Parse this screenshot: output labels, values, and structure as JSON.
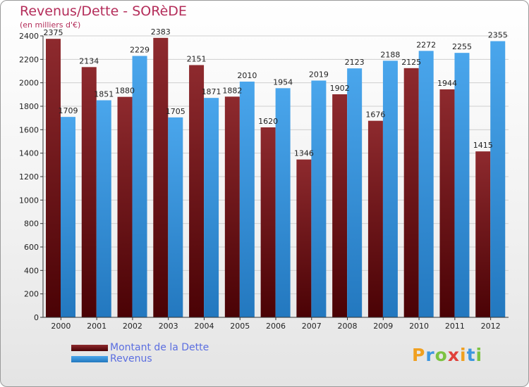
{
  "chart_data": {
    "type": "bar",
    "title": "Revenus/Dette - SORèDE",
    "unit_label": "(en milliers d'€)",
    "categories": [
      "2000",
      "2001",
      "2002",
      "2003",
      "2004",
      "2005",
      "2006",
      "2007",
      "2008",
      "2009",
      "2010",
      "2011",
      "2012"
    ],
    "series": [
      {
        "name": "Montant de la Dette",
        "color": "#7a1b1f",
        "values": [
          2375,
          2134,
          1880,
          2383,
          2151,
          1882,
          1620,
          1346,
          1902,
          1676,
          2125,
          1944,
          1415
        ]
      },
      {
        "name": "Revenus",
        "color": "#3d97e0",
        "values": [
          1709,
          1851,
          2229,
          1705,
          1871,
          2010,
          1954,
          2019,
          2123,
          2188,
          2272,
          2255,
          2355
        ]
      }
    ],
    "ylim": [
      0,
      2400
    ],
    "yticks": [
      0,
      200,
      400,
      600,
      800,
      1000,
      1200,
      1400,
      1600,
      1800,
      2000,
      2200,
      2400
    ],
    "grid": true,
    "legend_position": "bottom-left"
  },
  "logo": {
    "text": "Proxiti",
    "letters": [
      "P",
      "r",
      "o",
      "x",
      "i",
      "t",
      "i"
    ],
    "colors": [
      "#f0a020",
      "#3d97e0",
      "#7cc242",
      "#e0403a",
      "#f0a020",
      "#3d97e0",
      "#7cc242"
    ]
  }
}
